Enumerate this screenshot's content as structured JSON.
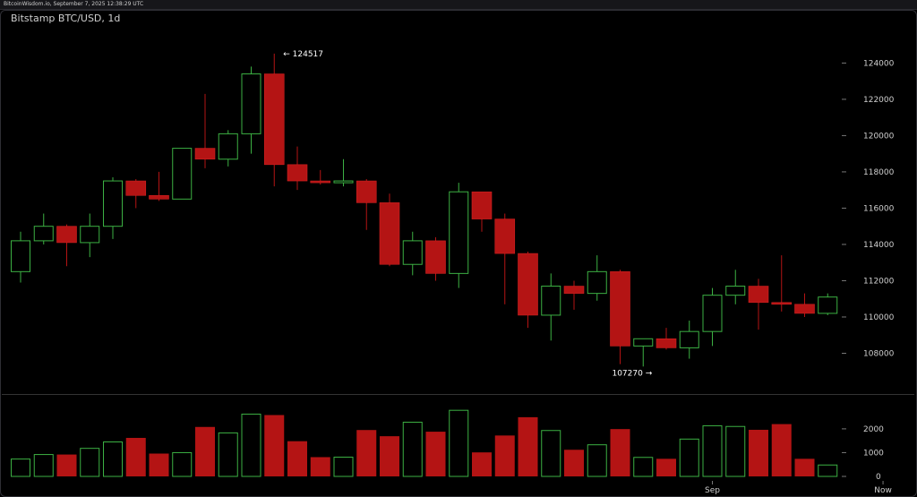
{
  "header": {
    "source_line": "BitcoinWisdom.io, September 7, 2025 12:38:29 UTC"
  },
  "chart_data": {
    "type": "candlestick",
    "title": "Bitstamp BTC/USD, 1d",
    "price_axis": {
      "ylim": [
        106000,
        125500
      ],
      "ticks": [
        108000,
        110000,
        112000,
        114000,
        116000,
        118000,
        120000,
        122000,
        124000
      ]
    },
    "volume_axis": {
      "ylim": [
        0,
        2900
      ],
      "ticks": [
        0,
        1000,
        2000
      ]
    },
    "x_labels": [
      {
        "label": "Sep",
        "index": 30
      },
      {
        "label": "Now",
        "index": 37.4
      }
    ],
    "annotations": [
      {
        "text": "← 124517",
        "value": 124517,
        "index": 11,
        "side": "right"
      },
      {
        "text": "107270 →",
        "value": 107270,
        "index": 27,
        "side": "left"
      }
    ],
    "colors": {
      "up": "#3cb043",
      "down": "#b41414",
      "grid": "#2a2a2a",
      "separator": "#333333"
    },
    "candles": [
      {
        "open": 112500,
        "high": 114700,
        "low": 111900,
        "close": 114200,
        "volume": 730
      },
      {
        "open": 114200,
        "high": 115700,
        "low": 114000,
        "close": 115000,
        "volume": 920
      },
      {
        "open": 115000,
        "high": 115100,
        "low": 112800,
        "close": 114100,
        "volume": 920
      },
      {
        "open": 114100,
        "high": 115700,
        "low": 113300,
        "close": 115000,
        "volume": 1180
      },
      {
        "open": 115000,
        "high": 117700,
        "low": 114300,
        "close": 117500,
        "volume": 1450
      },
      {
        "open": 117500,
        "high": 117600,
        "low": 116000,
        "close": 116700,
        "volume": 1620
      },
      {
        "open": 116700,
        "high": 118000,
        "low": 116400,
        "close": 116500,
        "volume": 960
      },
      {
        "open": 116500,
        "high": 119300,
        "low": 116500,
        "close": 119300,
        "volume": 1000
      },
      {
        "open": 119300,
        "high": 122300,
        "low": 118200,
        "close": 118700,
        "volume": 2080
      },
      {
        "open": 118700,
        "high": 120300,
        "low": 118300,
        "close": 120100,
        "volume": 1830
      },
      {
        "open": 120100,
        "high": 123800,
        "low": 119000,
        "close": 123400,
        "volume": 2620
      },
      {
        "open": 123400,
        "high": 124517,
        "low": 117200,
        "close": 118400,
        "volume": 2580
      },
      {
        "open": 118400,
        "high": 119400,
        "low": 117000,
        "close": 117500,
        "volume": 1480
      },
      {
        "open": 117500,
        "high": 118100,
        "low": 117300,
        "close": 117400,
        "volume": 810
      },
      {
        "open": 117400,
        "high": 118700,
        "low": 117200,
        "close": 117500,
        "volume": 810
      },
      {
        "open": 117500,
        "high": 117600,
        "low": 114800,
        "close": 116300,
        "volume": 1950
      },
      {
        "open": 116300,
        "high": 116800,
        "low": 112800,
        "close": 112900,
        "volume": 1690
      },
      {
        "open": 112900,
        "high": 114700,
        "low": 112300,
        "close": 114200,
        "volume": 2280
      },
      {
        "open": 114200,
        "high": 114400,
        "low": 112000,
        "close": 112400,
        "volume": 1880
      },
      {
        "open": 112400,
        "high": 117400,
        "low": 111600,
        "close": 116900,
        "volume": 2780
      },
      {
        "open": 116900,
        "high": 116900,
        "low": 114700,
        "close": 115400,
        "volume": 1010
      },
      {
        "open": 115400,
        "high": 115700,
        "low": 110700,
        "close": 113500,
        "volume": 1720
      },
      {
        "open": 113500,
        "high": 113600,
        "low": 109400,
        "close": 110100,
        "volume": 2490
      },
      {
        "open": 110100,
        "high": 112400,
        "low": 108700,
        "close": 111700,
        "volume": 1930
      },
      {
        "open": 111700,
        "high": 112000,
        "low": 110400,
        "close": 111300,
        "volume": 1120
      },
      {
        "open": 111300,
        "high": 113400,
        "low": 110900,
        "close": 112500,
        "volume": 1330
      },
      {
        "open": 112500,
        "high": 112600,
        "low": 107400,
        "close": 108400,
        "volume": 1990
      },
      {
        "open": 108400,
        "high": 108800,
        "low": 107270,
        "close": 108800,
        "volume": 800
      },
      {
        "open": 108800,
        "high": 109400,
        "low": 108200,
        "close": 108300,
        "volume": 740
      },
      {
        "open": 108300,
        "high": 109800,
        "low": 107700,
        "close": 109200,
        "volume": 1570
      },
      {
        "open": 109200,
        "high": 111600,
        "low": 108400,
        "close": 111200,
        "volume": 2130
      },
      {
        "open": 111200,
        "high": 112600,
        "low": 110700,
        "close": 111700,
        "volume": 2100
      },
      {
        "open": 111700,
        "high": 112100,
        "low": 109300,
        "close": 110800,
        "volume": 1960
      },
      {
        "open": 110800,
        "high": 113400,
        "low": 110300,
        "close": 110700,
        "volume": 2200
      },
      {
        "open": 110700,
        "high": 111300,
        "low": 110000,
        "close": 110200,
        "volume": 740
      },
      {
        "open": 110200,
        "high": 111300,
        "low": 110100,
        "close": 111100,
        "volume": 480
      }
    ]
  }
}
